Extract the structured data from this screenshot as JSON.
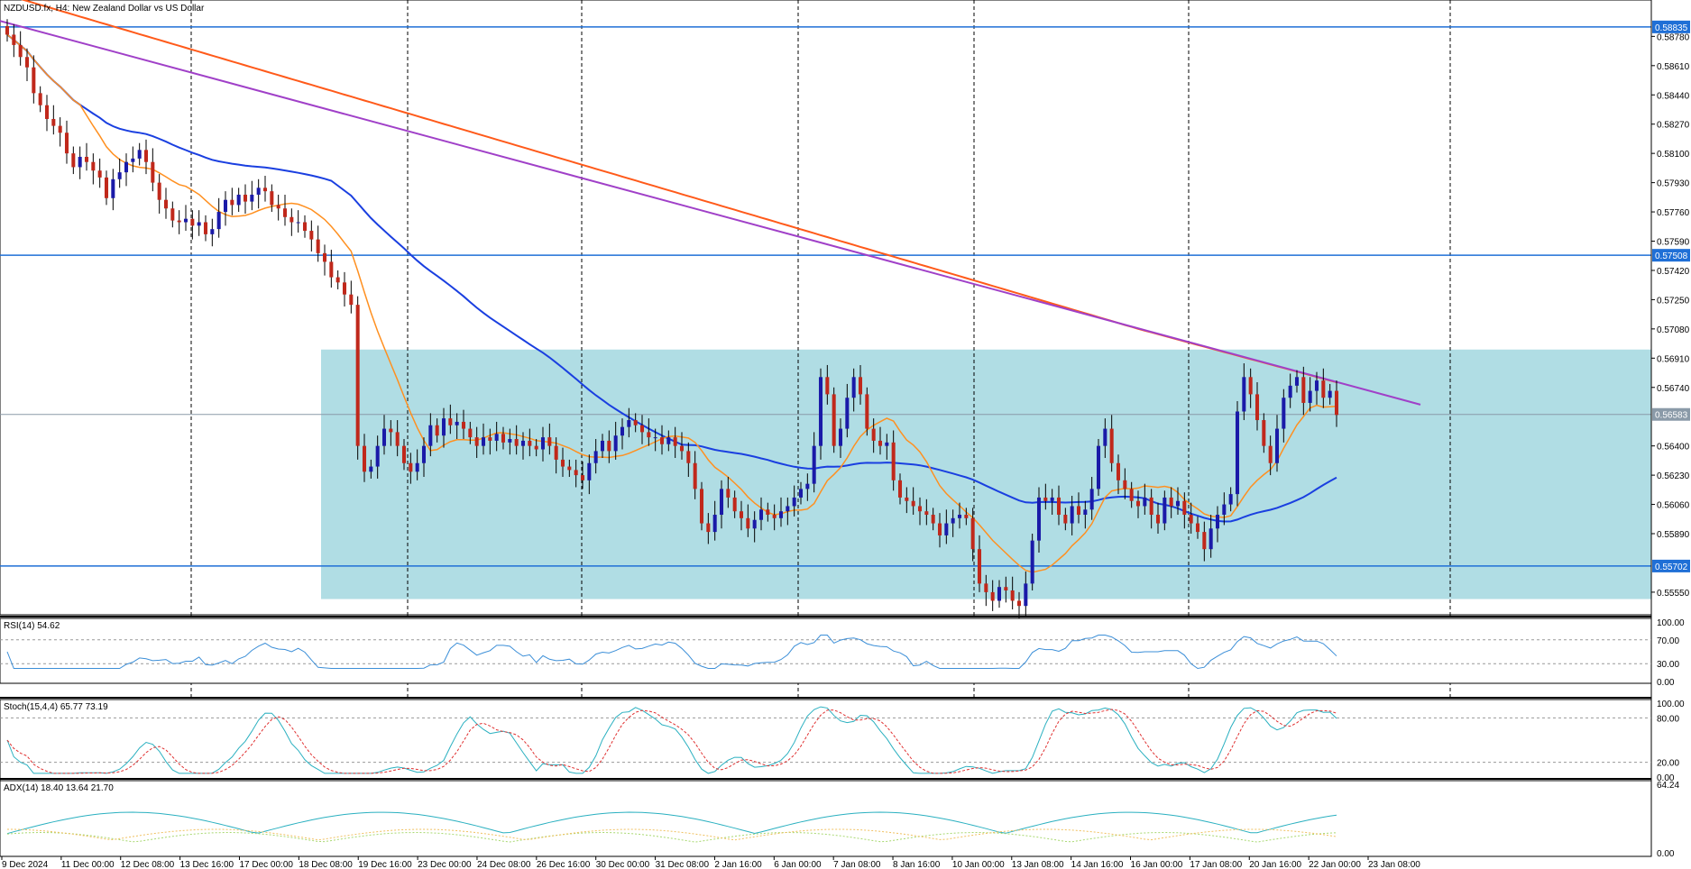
{
  "title": "NZDUSD.fx, H4:  New Zealand Dollar vs US Dollar",
  "colors": {
    "background": "#ffffff",
    "bull_candle": "#1a1aa8",
    "bear_candle": "#c0281b",
    "zone": "#b0dde4",
    "hline": "#1f6fd6",
    "ma_fast": "#ff9020",
    "ma_mid": "#1a3fe0",
    "ma_slow": "#ff5a1a",
    "trendline": "#a040c8",
    "rsi": "#3c8fd8",
    "stoch_main": "#2ab0c0",
    "stoch_signal": "#e03030",
    "adx": "#2ab0c0",
    "di_plus": "#a8d870",
    "di_minus": "#f0c060",
    "axis_bg": "#ffffff",
    "tag_bg": "#1f6fd6"
  },
  "chart_data": {
    "type": "candlestick",
    "symbol": "NZDUSD.fx",
    "timeframe": "H4",
    "price_axis": [
      "0.58780",
      "0.58610",
      "0.58440",
      "0.58270",
      "0.58100",
      "0.57930",
      "0.57760",
      "0.57590",
      "0.57420",
      "0.57250",
      "0.57080",
      "0.56910",
      "0.56740",
      "0.56400",
      "0.56230",
      "0.56060",
      "0.55890",
      "0.55550"
    ],
    "ylim": [
      0.5545,
      0.5896
    ],
    "horizontal_lines": [
      {
        "price": 0.58835,
        "label": "0.58835"
      },
      {
        "price": 0.57508,
        "label": "0.57508"
      },
      {
        "price": 0.55702,
        "label": "0.55702"
      }
    ],
    "current_price": {
      "price": 0.56583,
      "label": "0.56583"
    },
    "zone": {
      "top": 0.5696,
      "bottom": 0.5551
    },
    "x_labels": [
      "9 Dec 2024",
      "11 Dec 00:00",
      "12 Dec 08:00",
      "13 Dec 16:00",
      "17 Dec 00:00",
      "18 Dec 08:00",
      "19 Dec 16:00",
      "23 Dec 00:00",
      "24 Dec 08:00",
      "26 Dec 16:00",
      "30 Dec 00:00",
      "31 Dec 08:00",
      "2 Jan 16:00",
      "6 Jan 00:00",
      "7 Jan 08:00",
      "8 Jan 16:00",
      "10 Jan 00:00",
      "13 Jan 08:00",
      "14 Jan 16:00",
      "16 Jan 00:00",
      "17 Jan 08:00",
      "20 Jan 16:00",
      "22 Jan 00:00",
      "23 Jan 08:00"
    ],
    "close": [
      0.5879,
      0.5873,
      0.5866,
      0.586,
      0.5845,
      0.5838,
      0.583,
      0.5826,
      0.5822,
      0.581,
      0.5802,
      0.5808,
      0.5805,
      0.58,
      0.5796,
      0.5784,
      0.5795,
      0.5799,
      0.5805,
      0.5807,
      0.5812,
      0.5805,
      0.5793,
      0.5783,
      0.5778,
      0.5771,
      0.577,
      0.5772,
      0.5768,
      0.577,
      0.5763,
      0.5766,
      0.5776,
      0.5783,
      0.578,
      0.5786,
      0.5782,
      0.5786,
      0.579,
      0.5788,
      0.578,
      0.5778,
      0.5773,
      0.577,
      0.577,
      0.5765,
      0.576,
      0.5752,
      0.5747,
      0.5738,
      0.5735,
      0.5728,
      0.5722,
      0.564,
      0.5625,
      0.5628,
      0.564,
      0.565,
      0.5648,
      0.564,
      0.563,
      0.5625,
      0.563,
      0.564,
      0.5652,
      0.5646,
      0.5656,
      0.5652,
      0.5654,
      0.565,
      0.5645,
      0.564,
      0.5645,
      0.5643,
      0.5647,
      0.5642,
      0.5644,
      0.564,
      0.5643,
      0.564,
      0.5638,
      0.5645,
      0.564,
      0.5632,
      0.5628,
      0.5626,
      0.5623,
      0.562,
      0.563,
      0.5637,
      0.5643,
      0.5637,
      0.5646,
      0.5651,
      0.5655,
      0.5652,
      0.5648,
      0.5645,
      0.5645,
      0.5641,
      0.5645,
      0.564,
      0.5637,
      0.563,
      0.5615,
      0.5595,
      0.559,
      0.56,
      0.5615,
      0.561,
      0.5602,
      0.5598,
      0.5592,
      0.5597,
      0.5603,
      0.56,
      0.5598,
      0.5602,
      0.5605,
      0.561,
      0.5615,
      0.5618,
      0.564,
      0.568,
      0.567,
      0.564,
      0.565,
      0.5668,
      0.568,
      0.567,
      0.565,
      0.5643,
      0.564,
      0.5642,
      0.562,
      0.561,
      0.5608,
      0.5605,
      0.5602,
      0.56,
      0.5595,
      0.5588,
      0.5595,
      0.5598,
      0.56,
      0.5598,
      0.558,
      0.556,
      0.5555,
      0.555,
      0.5558,
      0.5556,
      0.555,
      0.5547,
      0.556,
      0.5585,
      0.561,
      0.5608,
      0.561,
      0.56,
      0.5595,
      0.5605,
      0.56,
      0.5603,
      0.5615,
      0.564,
      0.565,
      0.563,
      0.562,
      0.5615,
      0.5608,
      0.5605,
      0.561,
      0.56,
      0.5595,
      0.561,
      0.5605,
      0.5608,
      0.56,
      0.5595,
      0.559,
      0.558,
      0.5592,
      0.56,
      0.5606,
      0.5612,
      0.566,
      0.568,
      0.567,
      0.5655,
      0.564,
      0.563,
      0.565,
      0.5668,
      0.5675,
      0.568,
      0.5665,
      0.5672,
      0.5678,
      0.5668,
      0.5672,
      0.5658
    ]
  },
  "indicators": [
    {
      "id": "rsi",
      "label": "RSI(14) 54.62",
      "levels": [
        "100.00",
        "70.00",
        "30.00",
        "0.00"
      ]
    },
    {
      "id": "stoch",
      "label": "Stoch(15,4,4) 65.77 73.19",
      "levels": [
        "100.00",
        "80.00",
        "20.00",
        "0.00"
      ]
    },
    {
      "id": "adx",
      "label": "ADX(14) 18.40 13.64 21.70",
      "levels": [
        "64.24",
        "0.00"
      ]
    }
  ]
}
